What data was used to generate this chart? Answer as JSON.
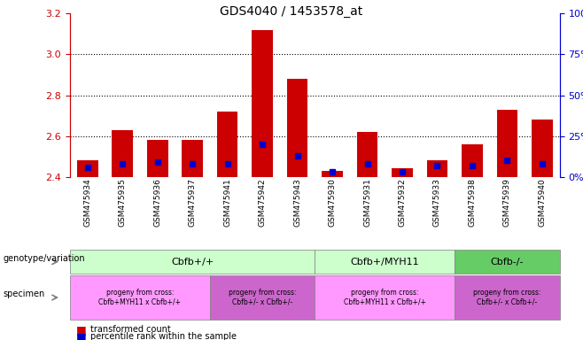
{
  "title": "GDS4040 / 1453578_at",
  "samples": [
    "GSM475934",
    "GSM475935",
    "GSM475936",
    "GSM475937",
    "GSM475941",
    "GSM475942",
    "GSM475943",
    "GSM475930",
    "GSM475931",
    "GSM475932",
    "GSM475933",
    "GSM475938",
    "GSM475939",
    "GSM475940"
  ],
  "transformed_count": [
    2.48,
    2.63,
    2.58,
    2.58,
    2.72,
    3.12,
    2.88,
    2.43,
    2.62,
    2.44,
    2.48,
    2.56,
    2.73,
    2.68
  ],
  "percentile_rank": [
    6,
    8,
    9,
    8,
    8,
    20,
    13,
    3,
    8,
    3,
    7,
    7,
    10,
    8
  ],
  "y_min": 2.4,
  "y_max": 3.2,
  "y_ticks_left": [
    2.4,
    2.6,
    2.8,
    3.0,
    3.2
  ],
  "y_ticks_right": [
    0,
    25,
    50,
    75,
    100
  ],
  "dotted_lines": [
    2.6,
    2.8,
    3.0
  ],
  "bar_width": 0.6,
  "red_color": "#cc0000",
  "blue_color": "#0000cc",
  "genotype_groups": [
    {
      "label": "Cbfb+/+",
      "start": 0,
      "end": 7,
      "color": "#ccffcc"
    },
    {
      "label": "Cbfb+/MYH11",
      "start": 7,
      "end": 11,
      "color": "#ccffcc"
    },
    {
      "label": "Cbfb-/-",
      "start": 11,
      "end": 14,
      "color": "#66cc66"
    }
  ],
  "specimen_groups": [
    {
      "label": "progeny from cross:\nCbfb+MYH11 x Cbfb+/+",
      "start": 0,
      "end": 4,
      "color": "#ff99ff"
    },
    {
      "label": "progeny from cross:\nCbfb+/- x Cbfb+/-",
      "start": 4,
      "end": 7,
      "color": "#cc66cc"
    },
    {
      "label": "progeny from cross:\nCbfb+MYH11 x Cbfb+/+",
      "start": 7,
      "end": 11,
      "color": "#ff99ff"
    },
    {
      "label": "progeny from cross:\nCbfb+/- x Cbfb+/-",
      "start": 11,
      "end": 14,
      "color": "#cc66cc"
    }
  ],
  "legend_red": "transformed count",
  "legend_blue": "percentile rank within the sample",
  "genotype_label": "genotype/variation",
  "specimen_label": "specimen"
}
